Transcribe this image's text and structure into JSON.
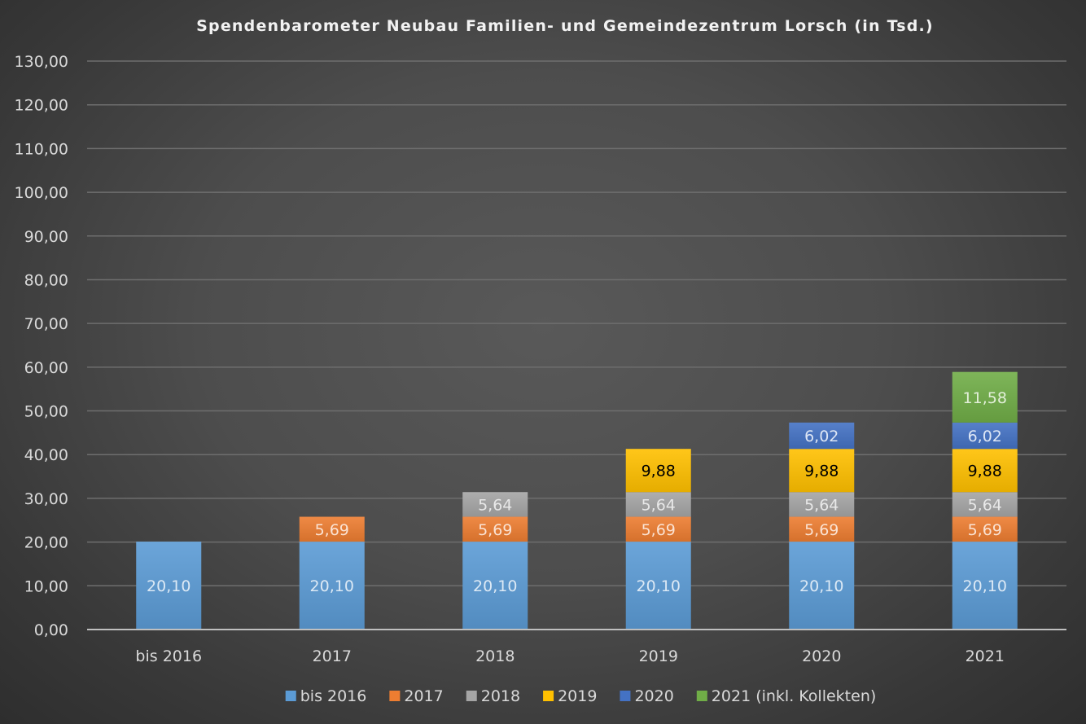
{
  "chart_data": {
    "type": "bar",
    "stacked": true,
    "title": "Spendenbarometer Neubau Familien- und Gemeindezentrum Lorsch (in Tsd.)",
    "xlabel": "",
    "ylabel": "",
    "ylim": [
      0,
      130
    ],
    "ytick_step": 10,
    "yticks": [
      "0,00",
      "10,00",
      "20,00",
      "30,00",
      "40,00",
      "50,00",
      "60,00",
      "70,00",
      "80,00",
      "90,00",
      "100,00",
      "110,00",
      "120,00",
      "130,00"
    ],
    "grid": true,
    "legend_position": "bottom",
    "categories": [
      "bis 2016",
      "2017",
      "2018",
      "2019",
      "2020",
      "2021"
    ],
    "series": [
      {
        "name": "bis 2016",
        "color": "#5b9bd5",
        "label_color": "#dce9f5",
        "values": [
          20.1,
          20.1,
          20.1,
          20.1,
          20.1,
          20.1
        ],
        "labels": [
          "20,10",
          "20,10",
          "20,10",
          "20,10",
          "20,10",
          "20,10"
        ]
      },
      {
        "name": "2017",
        "color": "#ed7d31",
        "label_color": "#fbe3d3",
        "values": [
          null,
          5.69,
          5.69,
          5.69,
          5.69,
          5.69
        ],
        "labels": [
          null,
          "5,69",
          "5,69",
          "5,69",
          "5,69",
          "5,69"
        ]
      },
      {
        "name": "2018",
        "color": "#a5a5a5",
        "label_color": "#e8e8e8",
        "values": [
          null,
          null,
          5.64,
          5.64,
          5.64,
          5.64
        ],
        "labels": [
          null,
          null,
          "5,64",
          "5,64",
          "5,64",
          "5,64"
        ]
      },
      {
        "name": "2019",
        "color": "#ffc000",
        "label_color": "#000000",
        "values": [
          null,
          null,
          null,
          9.88,
          9.88,
          9.88
        ],
        "labels": [
          null,
          null,
          null,
          "9,88",
          "9,88",
          "9,88"
        ]
      },
      {
        "name": "2020",
        "color": "#4472c4",
        "label_color": "#dde6f5",
        "values": [
          null,
          null,
          null,
          null,
          6.02,
          6.02
        ],
        "labels": [
          null,
          null,
          null,
          null,
          "6,02",
          "6,02"
        ]
      },
      {
        "name": "2021 (inkl. Kollekten)",
        "color": "#70ad47",
        "label_color": "#e2efd9",
        "values": [
          null,
          null,
          null,
          null,
          null,
          11.58
        ],
        "labels": [
          null,
          null,
          null,
          null,
          null,
          "11,58"
        ]
      }
    ]
  }
}
